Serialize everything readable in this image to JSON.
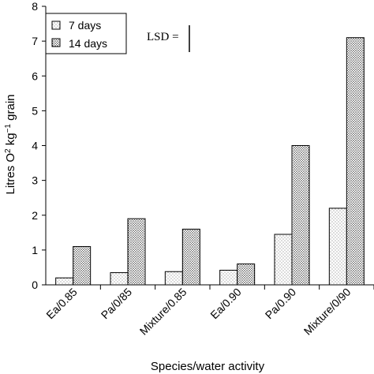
{
  "chart_data": {
    "type": "bar",
    "categories": [
      "Ea/0.85",
      "Pa/0/85",
      "Mixture/0.85",
      "Ea/0.90",
      "Pa/0.90",
      "Mixture/0/90"
    ],
    "series": [
      {
        "name": "7 days",
        "values": [
          0.2,
          0.35,
          0.38,
          0.42,
          1.45,
          2.2
        ],
        "fill": "light-dots"
      },
      {
        "name": "14 days",
        "values": [
          1.1,
          1.9,
          1.6,
          0.6,
          4.0,
          7.1
        ],
        "fill": "dense-dots"
      }
    ],
    "xlabel": "Species/water activity",
    "ylabel_parts": [
      "Litres O",
      "2",
      " kg",
      "−1",
      " grain"
    ],
    "ylim": [
      0,
      8
    ],
    "yticks": [
      0,
      1,
      2,
      3,
      4,
      5,
      6,
      7,
      8
    ],
    "grid": false,
    "legend_position": "top-left",
    "annotation": {
      "text": "LSD ="
    }
  }
}
